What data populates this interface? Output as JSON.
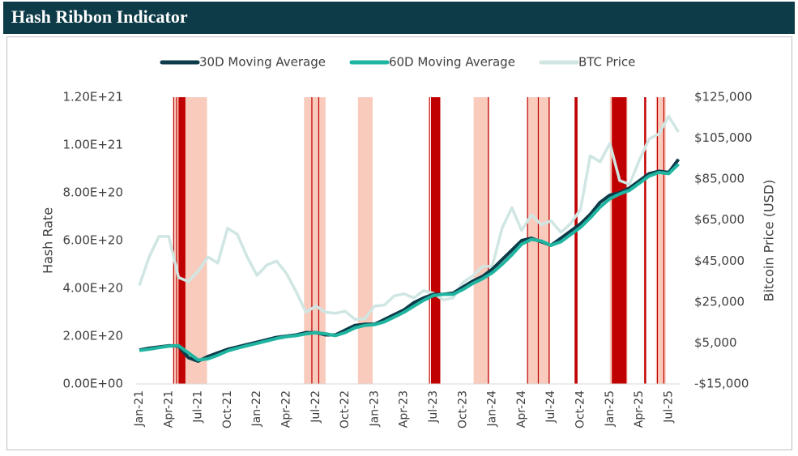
{
  "header": {
    "title": "Hash Ribbon Indicator"
  },
  "chart_data": {
    "type": "line",
    "y_label": "Hash Rate",
    "y2_label": "Bitcoin Price (USD)",
    "grid": false,
    "categories": [
      "Jan-21",
      null,
      null,
      "Apr-21",
      null,
      null,
      "Jul-21",
      null,
      null,
      "Oct-21",
      null,
      null,
      "Jan-22",
      null,
      null,
      "Apr-22",
      null,
      null,
      "Jul-22",
      null,
      null,
      "Oct-22",
      null,
      null,
      "Jan-23",
      null,
      null,
      "Apr-23",
      null,
      null,
      "Jul-23",
      null,
      null,
      "Oct-23",
      null,
      null,
      "Jan-24",
      null,
      null,
      "Apr-24",
      null,
      null,
      "Jul-24",
      null,
      null,
      "Oct-24",
      null,
      null,
      "Jan-25",
      null,
      null,
      "Apr-25",
      null,
      null,
      "Jul-25",
      null
    ],
    "series": [
      {
        "name": "30D Moving Average",
        "color": "#0d3b4a",
        "values": [
          1.42e+20,
          1.5e+20,
          1.55e+20,
          1.6e+20,
          1.58e+20,
          1.1e+20,
          9.5e+19,
          1.15e+20,
          1.3e+20,
          1.45e+20,
          1.55e+20,
          1.65e+20,
          1.75e+20,
          1.85e+20,
          1.95e+20,
          2e+20,
          2.05e+20,
          2.15e+20,
          2.15e+20,
          2.05e+20,
          2.05e+20,
          2.25e+20,
          2.45e+20,
          2.5e+20,
          2.5e+20,
          2.7e+20,
          2.9e+20,
          3.1e+20,
          3.4e+20,
          3.6e+20,
          3.75e+20,
          3.75e+20,
          3.8e+20,
          4.05e+20,
          4.3e+20,
          4.5e+20,
          4.8e+20,
          5.2e+20,
          5.6e+20,
          6e+20,
          6.1e+20,
          5.95e+20,
          5.8e+20,
          6.1e+20,
          6.4e+20,
          6.7e+20,
          7.1e+20,
          7.6e+20,
          7.9e+20,
          8e+20,
          8.2e+20,
          8.5e+20,
          8.8e+20,
          8.9e+20,
          8.85e+20,
          9.4e+20
        ]
      },
      {
        "name": "60D Moving Average",
        "color": "#1fb5a0",
        "values": [
          1.4e+20,
          1.45e+20,
          1.52e+20,
          1.58e+20,
          1.6e+20,
          1.3e+20,
          1e+20,
          1.05e+20,
          1.2e+20,
          1.38e+20,
          1.5e+20,
          1.6e+20,
          1.7e+20,
          1.8e+20,
          1.9e+20,
          1.98e+20,
          2.02e+20,
          2.1e+20,
          2.15e+20,
          2.1e+20,
          2.02e+20,
          2.15e+20,
          2.35e+20,
          2.45e+20,
          2.48e+20,
          2.6e+20,
          2.8e+20,
          3e+20,
          3.25e+20,
          3.5e+20,
          3.7e+20,
          3.75e+20,
          3.75e+20,
          3.95e+20,
          4.2e+20,
          4.4e+20,
          4.65e+20,
          5e+20,
          5.4e+20,
          5.85e+20,
          6.05e+20,
          5.98e+20,
          5.8e+20,
          5.95e+20,
          6.25e+20,
          6.55e+20,
          6.95e+20,
          7.4e+20,
          7.75e+20,
          7.95e+20,
          8.1e+20,
          8.4e+20,
          8.7e+20,
          8.85e+20,
          8.8e+20,
          9.2e+20
        ]
      },
      {
        "name": "BTC Price",
        "color": "#cfe6e3",
        "axis": "y2",
        "values": [
          33000,
          47000,
          57000,
          57000,
          37000,
          35000,
          40000,
          47000,
          44000,
          61000,
          58000,
          47000,
          38000,
          43000,
          45000,
          39000,
          30000,
          20000,
          23000,
          20000,
          19500,
          20500,
          16500,
          16800,
          23000,
          23500,
          28000,
          29000,
          27000,
          30500,
          29300,
          26000,
          27000,
          34500,
          37700,
          42300,
          42500,
          61000,
          71000,
          60000,
          67500,
          62700,
          64600,
          59000,
          63300,
          70200,
          96400,
          93400,
          102400,
          84300,
          82500,
          94200,
          104600,
          107100,
          115700,
          108000
        ]
      }
    ],
    "ylim": [
      0,
      1.2e+21
    ],
    "yticks": [
      {
        "value": 0,
        "label": "0.00E+00"
      },
      {
        "value": 2e+20,
        "label": "2.00E+20"
      },
      {
        "value": 4e+20,
        "label": "4.00E+20"
      },
      {
        "value": 6e+20,
        "label": "6.00E+20"
      },
      {
        "value": 8e+20,
        "label": "8.00E+20"
      },
      {
        "value": 1e+21,
        "label": "1.00E+21"
      },
      {
        "value": 1.2e+21,
        "label": "1.20E+21"
      }
    ],
    "y2lim": [
      -15000,
      125000
    ],
    "y2ticks": [
      {
        "value": -15000,
        "label": "-$15,000"
      },
      {
        "value": 5000,
        "label": "$5,000"
      },
      {
        "value": 25000,
        "label": "$25,000"
      },
      {
        "value": 45000,
        "label": "$45,000"
      },
      {
        "value": 65000,
        "label": "$65,000"
      },
      {
        "value": 85000,
        "label": "$85,000"
      },
      {
        "value": 105000,
        "label": "$105,000"
      },
      {
        "value": 125000,
        "label": "$125,000"
      }
    ],
    "bands": [
      {
        "from": 3.5,
        "to": 6.9,
        "color": "#f8cbbd"
      },
      {
        "from": 3.45,
        "to": 3.55,
        "color": "#c00000"
      },
      {
        "from": 3.75,
        "to": 3.85,
        "color": "#c00000"
      },
      {
        "from": 4.0,
        "to": 4.7,
        "color": "#c00000"
      },
      {
        "from": 16.8,
        "to": 19.0,
        "color": "#f8cbbd"
      },
      {
        "from": 17.55,
        "to": 17.65,
        "color": "#c00000"
      },
      {
        "from": 18.25,
        "to": 18.35,
        "color": "#c00000"
      },
      {
        "from": 22.3,
        "to": 23.8,
        "color": "#f8cbbd"
      },
      {
        "from": 29.55,
        "to": 29.65,
        "color": "#c00000"
      },
      {
        "from": 29.75,
        "to": 30.7,
        "color": "#c00000"
      },
      {
        "from": 34.1,
        "to": 35.7,
        "color": "#f8cbbd"
      },
      {
        "from": 35.55,
        "to": 35.65,
        "color": "#c00000"
      },
      {
        "from": 39.6,
        "to": 41.9,
        "color": "#f8cbbd"
      },
      {
        "from": 39.55,
        "to": 39.65,
        "color": "#c00000"
      },
      {
        "from": 40.65,
        "to": 40.75,
        "color": "#c00000"
      },
      {
        "from": 41.75,
        "to": 41.85,
        "color": "#c00000"
      },
      {
        "from": 44.4,
        "to": 44.7,
        "color": "#c00000"
      },
      {
        "from": 48.0,
        "to": 49.8,
        "color": "#f8cbbd"
      },
      {
        "from": 48.2,
        "to": 49.7,
        "color": "#c00000"
      },
      {
        "from": 51.5,
        "to": 51.7,
        "color": "#c00000"
      },
      {
        "from": 52.7,
        "to": 53.7,
        "color": "#f8cbbd"
      },
      {
        "from": 52.8,
        "to": 52.9,
        "color": "#c00000"
      },
      {
        "from": 53.45,
        "to": 53.55,
        "color": "#c00000"
      }
    ]
  }
}
